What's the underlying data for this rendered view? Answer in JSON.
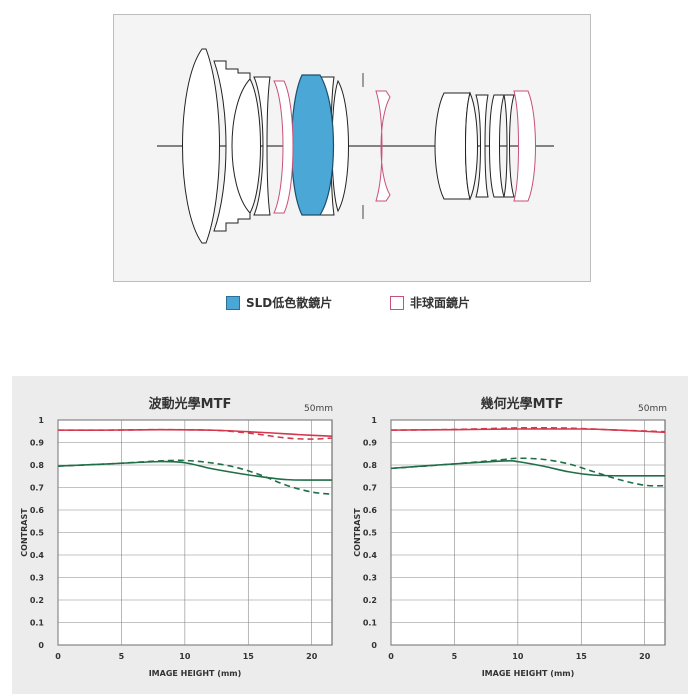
{
  "diagram": {
    "legend": [
      {
        "label": "SLD低色散鏡片",
        "fill": "#4aa7d6",
        "stroke": "#2a6f96"
      },
      {
        "label": "非球面鏡片",
        "fill": "#ffffff",
        "stroke": "#c8507a"
      }
    ]
  },
  "colors": {
    "panel_bg": "#ececec",
    "plot_bg": "#ffffff",
    "grid": "#888888",
    "red_series": "#d4384d",
    "green_series": "#1f6e46"
  },
  "chart_data": [
    {
      "type": "line",
      "title": "波動光學MTF",
      "focal_label": "50mm",
      "xlabel": "IMAGE HEIGHT (mm)",
      "ylabel": "CONTRAST",
      "xlim": [
        0,
        21.6
      ],
      "ylim": [
        0,
        1
      ],
      "xticks": [
        0,
        5,
        10,
        15,
        20
      ],
      "xtick_labels": [
        "0",
        "5",
        "10",
        "15",
        "20"
      ],
      "yticks": [
        0,
        0.1,
        0.2,
        0.3,
        0.4,
        0.5,
        0.6,
        0.7,
        0.8,
        0.9,
        1
      ],
      "ytick_labels": [
        "0",
        "0.1",
        "0.2",
        "0.3",
        "0.4",
        "0.5",
        "0.6",
        "0.7",
        "0.8",
        "0.9",
        "1"
      ],
      "grid": true,
      "series": [
        {
          "color": "red",
          "style": "solid",
          "x": [
            0,
            4,
            8,
            12,
            16,
            19,
            21.6
          ],
          "y": [
            0.955,
            0.955,
            0.957,
            0.955,
            0.945,
            0.935,
            0.928
          ]
        },
        {
          "color": "red",
          "style": "dashed",
          "x": [
            0,
            4,
            8,
            12,
            14,
            16,
            18,
            20,
            21.6
          ],
          "y": [
            0.955,
            0.955,
            0.957,
            0.955,
            0.948,
            0.935,
            0.92,
            0.915,
            0.92
          ]
        },
        {
          "color": "green",
          "style": "solid",
          "x": [
            0,
            4,
            8,
            10,
            12,
            14,
            16,
            18,
            20,
            21.6
          ],
          "y": [
            0.795,
            0.805,
            0.815,
            0.81,
            0.785,
            0.765,
            0.748,
            0.735,
            0.733,
            0.733
          ]
        },
        {
          "color": "green",
          "style": "dashed",
          "x": [
            0,
            4,
            8,
            10,
            12,
            14,
            16,
            18,
            20,
            21.6
          ],
          "y": [
            0.795,
            0.805,
            0.818,
            0.82,
            0.81,
            0.79,
            0.755,
            0.71,
            0.68,
            0.67
          ]
        }
      ]
    },
    {
      "type": "line",
      "title": "幾何光學MTF",
      "focal_label": "50mm",
      "xlabel": "IMAGE HEIGHT (mm)",
      "ylabel": "CONTRAST",
      "xlim": [
        0,
        21.6
      ],
      "ylim": [
        0,
        1
      ],
      "xticks": [
        0,
        5,
        10,
        15,
        20
      ],
      "xtick_labels": [
        "0",
        "5",
        "10",
        "15",
        "20"
      ],
      "yticks": [
        0,
        0.1,
        0.2,
        0.3,
        0.4,
        0.5,
        0.6,
        0.7,
        0.8,
        0.9,
        1
      ],
      "ytick_labels": [
        "0",
        "0.1",
        "0.2",
        "0.3",
        "0.4",
        "0.5",
        "0.6",
        "0.7",
        "0.8",
        "0.9",
        "1"
      ],
      "grid": true,
      "series": [
        {
          "color": "red",
          "style": "solid",
          "x": [
            0,
            5,
            10,
            15,
            18,
            21.6
          ],
          "y": [
            0.955,
            0.957,
            0.96,
            0.96,
            0.955,
            0.945
          ]
        },
        {
          "color": "red",
          "style": "dashed",
          "x": [
            0,
            5,
            10,
            13,
            15,
            18,
            21.6
          ],
          "y": [
            0.955,
            0.958,
            0.965,
            0.965,
            0.962,
            0.955,
            0.948
          ]
        },
        {
          "color": "green",
          "style": "solid",
          "x": [
            0,
            5,
            9,
            10,
            12,
            14,
            16,
            18,
            21.6
          ],
          "y": [
            0.785,
            0.805,
            0.818,
            0.815,
            0.795,
            0.77,
            0.755,
            0.752,
            0.752
          ]
        },
        {
          "color": "green",
          "style": "dashed",
          "x": [
            0,
            5,
            9,
            10,
            12,
            14,
            16,
            18,
            20,
            21.6
          ],
          "y": [
            0.785,
            0.805,
            0.825,
            0.83,
            0.825,
            0.805,
            0.77,
            0.735,
            0.71,
            0.708
          ]
        }
      ]
    }
  ]
}
